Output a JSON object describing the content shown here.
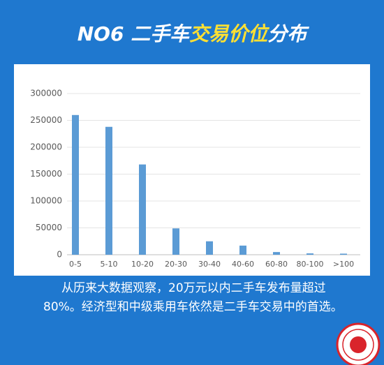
{
  "title": [
    "NO6 二手车",
    "交易价位",
    "分布"
  ],
  "caption": "从历来大数据观察，20万元以内二手车发布量超过80%。经济型和中级乘用车依然是二手车交易中的首选。",
  "chart_data": {
    "type": "bar",
    "categories": [
      "0-5",
      "5-10",
      "10-20",
      "20-30",
      "30-40",
      "40-60",
      "60-80",
      "80-100",
      ">100"
    ],
    "values": [
      260000,
      238000,
      168000,
      49000,
      25000,
      17000,
      5000,
      2500,
      2000
    ],
    "color": "#5b9bd5",
    "ylim": [
      0,
      300000
    ],
    "yticks": [
      0,
      50000,
      100000,
      150000,
      200000,
      250000,
      300000
    ],
    "grid": true
  }
}
